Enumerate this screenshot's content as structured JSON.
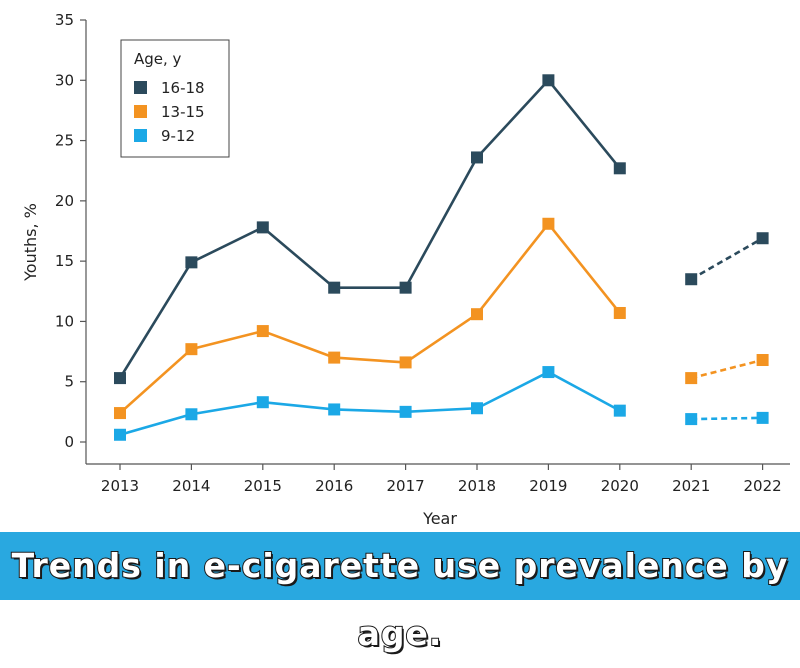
{
  "caption": "Trends in e-cigarette use prevalence by age.",
  "chart_data": {
    "type": "line",
    "xlabel": "Year",
    "ylabel": "Youths, %",
    "ylim": [
      0,
      35
    ],
    "yticks": [
      "0",
      "5",
      "10",
      "15",
      "20",
      "25",
      "30",
      "35"
    ],
    "categories": [
      "2013",
      "2014",
      "2015",
      "2016",
      "2017",
      "2018",
      "2019",
      "2020",
      "2021",
      "2022"
    ],
    "grid": false,
    "legend": {
      "title": "Age, y",
      "position": "top-left"
    },
    "series": [
      {
        "name": "16-18",
        "color": "#2b4a5c",
        "values": [
          5.3,
          14.9,
          17.8,
          12.8,
          12.8,
          23.6,
          30.0,
          22.7,
          13.5,
          16.9
        ]
      },
      {
        "name": "13-15",
        "color": "#f39321",
        "values": [
          2.4,
          7.7,
          9.2,
          7.0,
          6.6,
          10.6,
          18.1,
          10.7,
          5.3,
          6.8
        ]
      },
      {
        "name": "9-12",
        "color": "#1ba8e6",
        "values": [
          0.6,
          2.3,
          3.3,
          2.7,
          2.5,
          2.8,
          5.8,
          2.6,
          1.9,
          2.0
        ]
      }
    ],
    "solid_segment_years": [
      "2013",
      "2020"
    ],
    "dashed_segment_years": [
      "2021",
      "2022"
    ]
  }
}
